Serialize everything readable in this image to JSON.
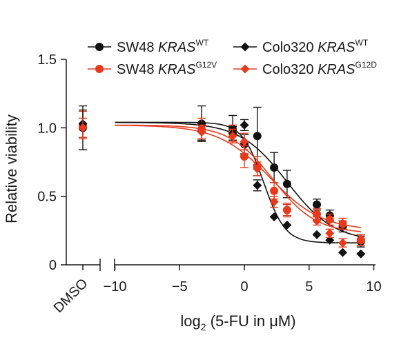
{
  "chart_data": {
    "type": "scatter",
    "xlabel": {
      "prefix": "log",
      "subscript": "2",
      "suffix": " (5-FU in μM)"
    },
    "ylabel": "Relative viability",
    "xlim": [
      -12.5,
      10
    ],
    "ylim": [
      0,
      1.5
    ],
    "x_ticks": [
      -10,
      -5,
      0,
      5,
      10
    ],
    "x_tick_labels": [
      "−10",
      "−5",
      "0",
      "5",
      "10"
    ],
    "y_ticks": [
      0,
      0.5,
      1.0,
      1.5
    ],
    "y_tick_labels": [
      "0",
      "0.5",
      "1.0",
      "1.5"
    ],
    "dmso_label": "DMSO",
    "axis_break": true,
    "series": [
      {
        "name": "SW48 KRAS WT",
        "label_main": "SW48 ",
        "label_gene": "KRAS",
        "label_sup": "WT",
        "color": "#111111",
        "marker": "circle",
        "dmso": {
          "y": 1.0,
          "err": 0.16
        },
        "x": [
          -3.3,
          -0.9,
          0,
          1.0,
          2.3,
          3.3,
          5.6,
          6.6,
          7.6,
          9.0
        ],
        "y": [
          1.03,
          0.99,
          0.88,
          0.94,
          0.71,
          0.59,
          0.44,
          0.36,
          0.28,
          0.17
        ],
        "err": [
          0.13,
          0.1,
          0.07,
          0.21,
          0.11,
          0.1,
          0.04,
          0.04,
          0.04,
          0.04
        ],
        "fit": {
          "top": 1.04,
          "bottom": 0.17,
          "ec50": 3.3,
          "slope": 0.55
        }
      },
      {
        "name": "SW48 KRAS G12V",
        "label_main": "SW48 ",
        "label_gene": "KRAS",
        "label_sup": "G12V",
        "color": "#e8391c",
        "marker": "circle",
        "dmso": {
          "y": 1.02,
          "err": 0.1
        },
        "x": [
          -3.3,
          -0.9,
          0,
          1.0,
          2.3,
          3.3,
          5.6,
          6.6,
          7.6,
          9.0
        ],
        "y": [
          0.99,
          0.96,
          0.79,
          0.72,
          0.54,
          0.4,
          0.37,
          0.33,
          0.3,
          0.18
        ],
        "err": [
          0.08,
          0.06,
          0.08,
          0.07,
          0.06,
          0.05,
          0.04,
          0.04,
          0.04,
          0.04
        ],
        "fit": {
          "top": 1.02,
          "bottom": 0.25,
          "ec50": 2.0,
          "slope": 0.5
        }
      },
      {
        "name": "Colo320 KRAS WT",
        "label_main": "Colo320 ",
        "label_gene": "KRAS",
        "label_sup": "WT",
        "color": "#111111",
        "marker": "diamond",
        "dmso": {
          "y": 1.03,
          "err": 0.1
        },
        "x": [
          -3.3,
          -0.9,
          0,
          1.0,
          2.3,
          3.3,
          5.6,
          6.6,
          7.6,
          9.0
        ],
        "y": [
          0.97,
          0.96,
          1.02,
          0.58,
          0.35,
          0.29,
          0.22,
          0.18,
          0.09,
          0.08
        ],
        "err": [
          0.06,
          0.05,
          0.04,
          0.04,
          0,
          0,
          0,
          0,
          0,
          0
        ],
        "fit": {
          "top": 1.04,
          "bottom": 0.16,
          "ec50": 1.5,
          "slope": 1.2
        }
      },
      {
        "name": "Colo320 KRAS G12D",
        "label_main": "Colo320 ",
        "label_gene": "KRAS",
        "label_sup": "G12D",
        "color": "#e8391c",
        "marker": "diamond",
        "dmso": {
          "y": 1.0,
          "err": 0.07
        },
        "x": [
          -3.3,
          -0.9,
          0,
          1.0,
          2.3,
          3.3,
          5.6,
          6.6,
          7.6,
          9.0
        ],
        "y": [
          0.97,
          0.94,
          0.9,
          0.7,
          0.46,
          0.4,
          0.32,
          0.23,
          0.16,
          0.19
        ],
        "err": [
          0.05,
          0.05,
          0.06,
          0.05,
          0.04,
          0.04,
          0.03,
          0.03,
          0.03,
          0.03
        ],
        "fit": {
          "top": 1.02,
          "bottom": 0.23,
          "ec50": 2.2,
          "slope": 0.6
        }
      }
    ]
  }
}
